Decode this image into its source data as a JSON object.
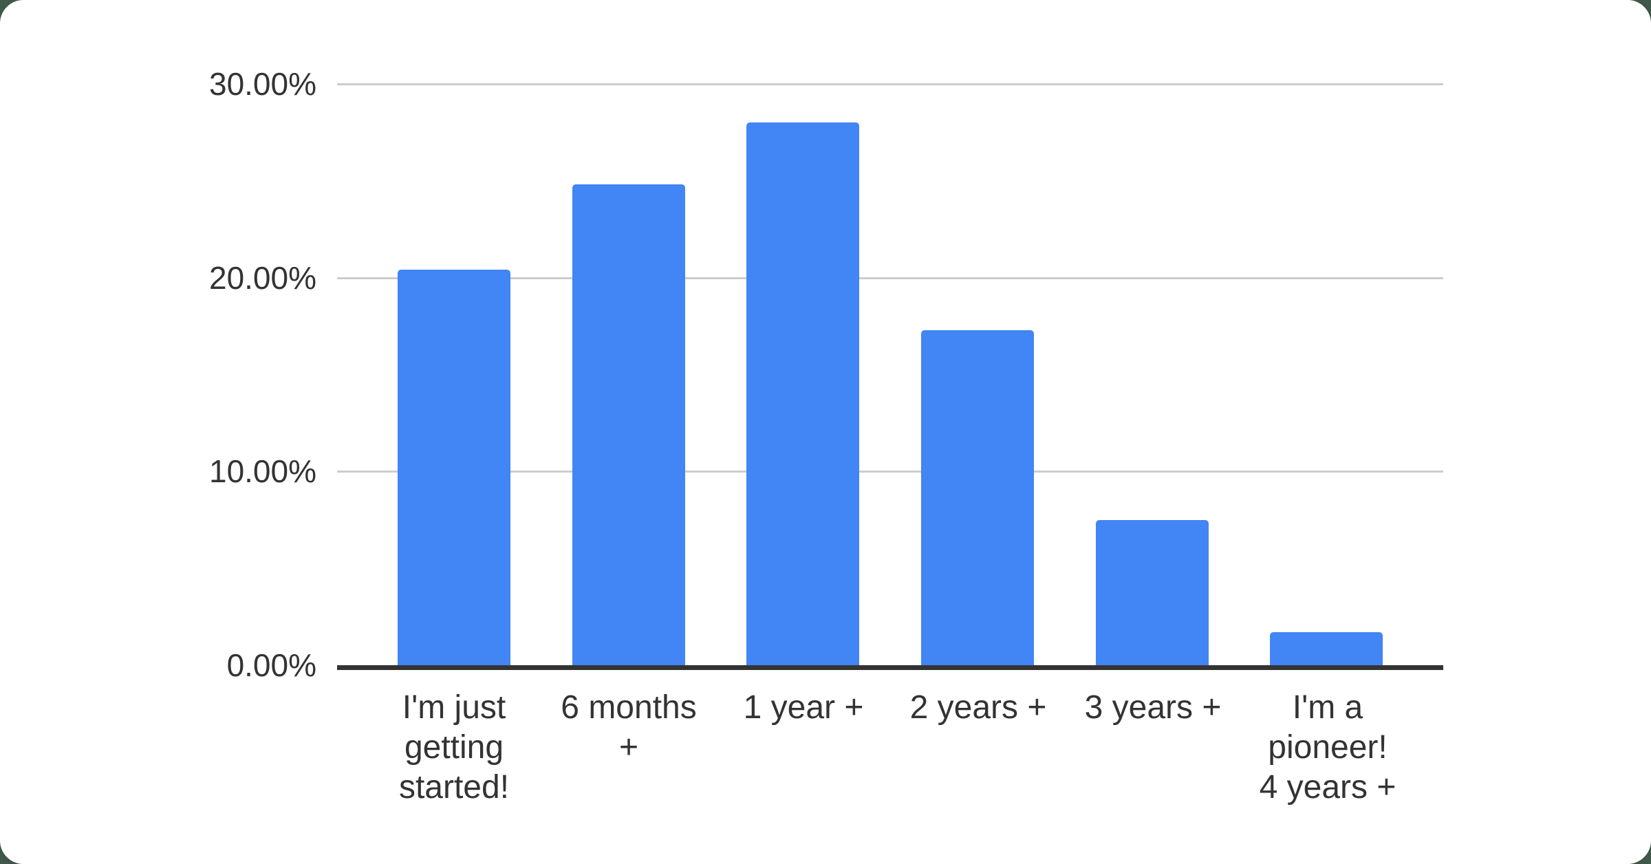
{
  "chart_data": {
    "type": "bar",
    "title": "",
    "categories": [
      "I'm just getting started!",
      "6 months +",
      "1 year +",
      "2 years +",
      "3 years +",
      "I'm a pioneer! 4 years +"
    ],
    "category_label_lines": [
      [
        "I'm just",
        "getting",
        "started!"
      ],
      [
        "6 months",
        "+"
      ],
      [
        "1 year +"
      ],
      [
        "2 years +"
      ],
      [
        "3 years +"
      ],
      [
        "I'm a",
        "pioneer!",
        "4 years +"
      ]
    ],
    "values": [
      20.4,
      24.8,
      28.0,
      17.3,
      7.5,
      1.7
    ],
    "value_unit": "%",
    "xlabel": "",
    "ylabel": "",
    "ylim": [
      0,
      30
    ],
    "ytick_labels": [
      "30.00%",
      "20.00%",
      "10.00%",
      "0.00%"
    ],
    "ytick_values": [
      30,
      20,
      10,
      0
    ],
    "grid": true,
    "legend_position": "none",
    "colors": {
      "bar": "#4285f4",
      "gridline": "#cccccc",
      "axis": "#333333",
      "label_text": "#333333",
      "card_background": "#ffffff",
      "page_background": "#41594b"
    }
  }
}
